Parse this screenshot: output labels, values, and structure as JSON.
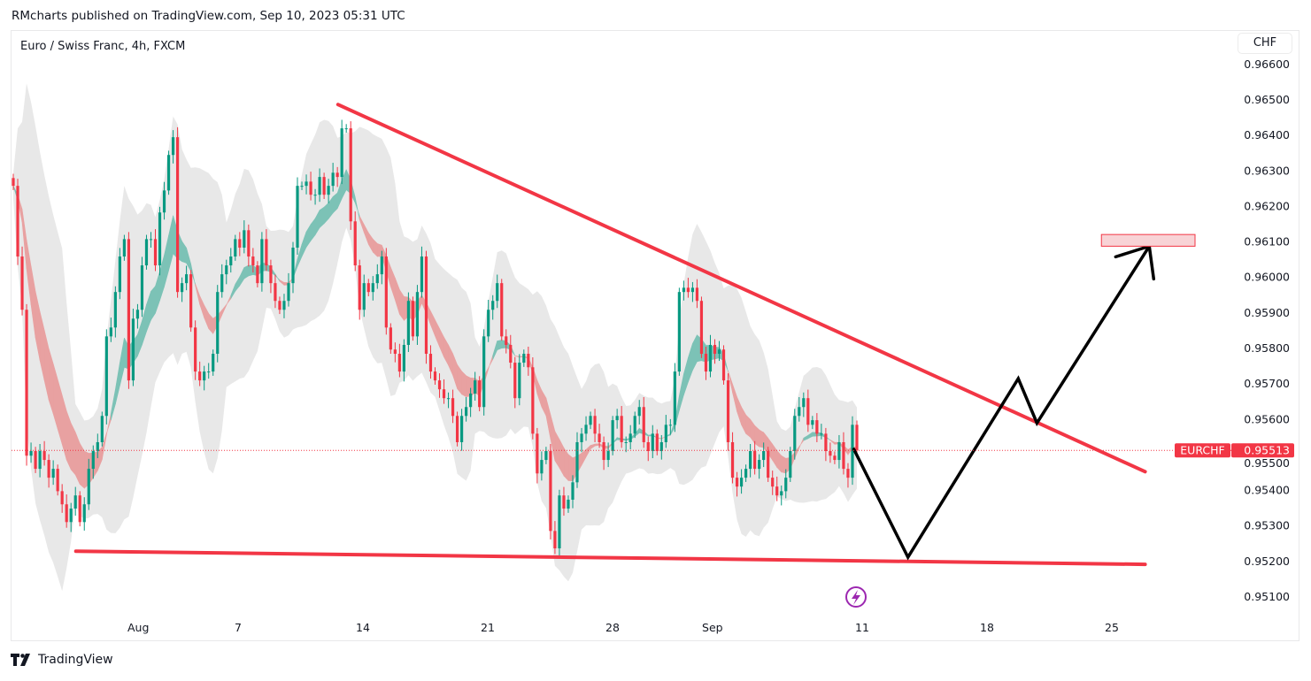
{
  "header": {
    "published": "RMcharts published on TradingView.com, Sep 10, 2023 05:31 UTC"
  },
  "chart_title": "Euro / Swiss Franc, 4h, FXCM",
  "currency_button": "CHF",
  "footer": {
    "logo_text": "TradingView",
    "logo_icon": "tradingview-logo-icon"
  },
  "colors": {
    "up": "#089981",
    "down": "#f23645",
    "trendline": "#f23645",
    "projection": "#000000",
    "target_fill": "#f8d3d6",
    "ribbon_up": "#7cc2b6",
    "ribbon_down": "#e8a1a1",
    "envelope": "#e6e6e6",
    "lightning": "#9c27b0"
  },
  "chart_data": {
    "type": "candlestick",
    "symbol": "EURCHF",
    "interval": "4h",
    "last_price": "0.95513",
    "last_price_label": "EURCHF",
    "y_ticks": [
      "0.96600",
      "0.96500",
      "0.96400",
      "0.96300",
      "0.96200",
      "0.96100",
      "0.96000",
      "0.95900",
      "0.95800",
      "0.95700",
      "0.95600",
      "0.95500",
      "0.95400",
      "0.95300",
      "0.95200",
      "0.95100"
    ],
    "ylim": [
      0.9502,
      0.9668
    ],
    "x_ticks": [
      {
        "label": "Aug",
        "date": "2023-08-01"
      },
      {
        "label": "7",
        "date": "2023-08-07"
      },
      {
        "label": "14",
        "date": "2023-08-14"
      },
      {
        "label": "21",
        "date": "2023-08-21"
      },
      {
        "label": "28",
        "date": "2023-08-28"
      },
      {
        "label": "Sep",
        "date": "2023-09-01"
      },
      {
        "label": "11",
        "date": "2023-09-11"
      },
      {
        "label": "18",
        "date": "2023-09-18"
      },
      {
        "label": "25",
        "date": "2023-09-25"
      }
    ],
    "closes": [
      0.96258,
      0.96059,
      0.95909,
      0.95498,
      0.95511,
      0.95461,
      0.95511,
      0.95486,
      0.95436,
      0.95461,
      0.95398,
      0.95361,
      0.95311,
      0.95349,
      0.95386,
      0.95311,
      0.95361,
      0.95461,
      0.95511,
      0.95536,
      0.9561,
      0.95834,
      0.95859,
      0.95959,
      0.96059,
      0.96108,
      0.9571,
      0.95884,
      0.95909,
      0.96034,
      0.96108,
      0.96108,
      0.96034,
      0.96183,
      0.96245,
      0.96345,
      0.96395,
      0.95959,
      0.95984,
      0.96009,
      0.95859,
      0.95735,
      0.9571,
      0.95735,
      0.95735,
      0.95785,
      0.95959,
      0.96009,
      0.96034,
      0.96059,
      0.96108,
      0.96084,
      0.96133,
      0.96059,
      0.96034,
      0.95984,
      0.96108,
      0.96034,
      0.95984,
      0.95934,
      0.95909,
      0.95934,
      0.95984,
      0.96084,
      0.96258,
      0.96258,
      0.9627,
      0.96233,
      0.96233,
      0.96283,
      0.96233,
      0.96258,
      0.96295,
      0.96283,
      0.9642,
      0.9642,
      0.96158,
      0.96034,
      0.95909,
      0.95984,
      0.95959,
      0.95984,
      0.96009,
      0.96059,
      0.95859,
      0.95797,
      0.95785,
      0.95735,
      0.9581,
      0.95934,
      0.95834,
      0.95959,
      0.96059,
      0.95785,
      0.95735,
      0.9571,
      0.95685,
      0.9566,
      0.9566,
      0.9561,
      0.95536,
      0.9561,
      0.95635,
      0.95673,
      0.9571,
      0.95635,
      0.95834,
      0.95909,
      0.95934,
      0.95984,
      0.95834,
      0.9581,
      0.9576,
      0.9566,
      0.9576,
      0.95785,
      0.95747,
      0.9556,
      0.95448,
      0.95486,
      0.95511,
      0.95286,
      0.95237,
      0.95386,
      0.95349,
      0.95374,
      0.95423,
      0.95536,
      0.9556,
      0.95585,
      0.9561,
      0.9556,
      0.95536,
      0.95486,
      0.95511,
      0.95598,
      0.9561,
      0.95536,
      0.95536,
      0.9556,
      0.9561,
      0.95635,
      0.95536,
      0.95511,
      0.9556,
      0.95511,
      0.95536,
      0.95585,
      0.95585,
      0.95735,
      0.95959,
      0.95971,
      0.95959,
      0.95971,
      0.95934,
      0.95785,
      0.95735,
      0.9581,
      0.95785,
      0.95797,
      0.9571,
      0.95536,
      0.95436,
      0.95411,
      0.95436,
      0.95461,
      0.95511,
      0.95461,
      0.95486,
      0.95511,
      0.95436,
      0.95411,
      0.95386,
      0.95398,
      0.95436,
      0.95511,
      0.9561,
      0.95635,
      0.9566,
      0.95585,
      0.95598,
      0.9556,
      0.9556,
      0.95511,
      0.95498,
      0.95486,
      0.95536,
      0.95461,
      0.95436,
      0.95585,
      0.95513
    ],
    "drawings": {
      "upper_trendline": [
        {
          "date": "2023-08-11 00:00",
          "price": 0.96487
        },
        {
          "date": "2023-09-26 08:00",
          "price": 0.95453
        }
      ],
      "lower_trendline": [
        {
          "date": "2023-07-27 12:00",
          "price": 0.95229
        },
        {
          "date": "2023-09-26 08:00",
          "price": 0.95192
        }
      ],
      "projection_path": [
        {
          "date": "2023-09-08 16:00",
          "price": 0.95516
        },
        {
          "date": "2023-09-12 20:00",
          "price": 0.95212
        },
        {
          "date": "2023-09-19 06:00",
          "price": 0.95715
        },
        {
          "date": "2023-09-20 00:00",
          "price": 0.9559
        },
        {
          "date": "2023-09-26 12:00",
          "price": 0.96088
        }
      ],
      "target_box": {
        "from": "2023-09-22 14:00",
        "to": "2023-09-28 08:00",
        "top": 0.96121,
        "bottom": 0.96088
      }
    }
  }
}
